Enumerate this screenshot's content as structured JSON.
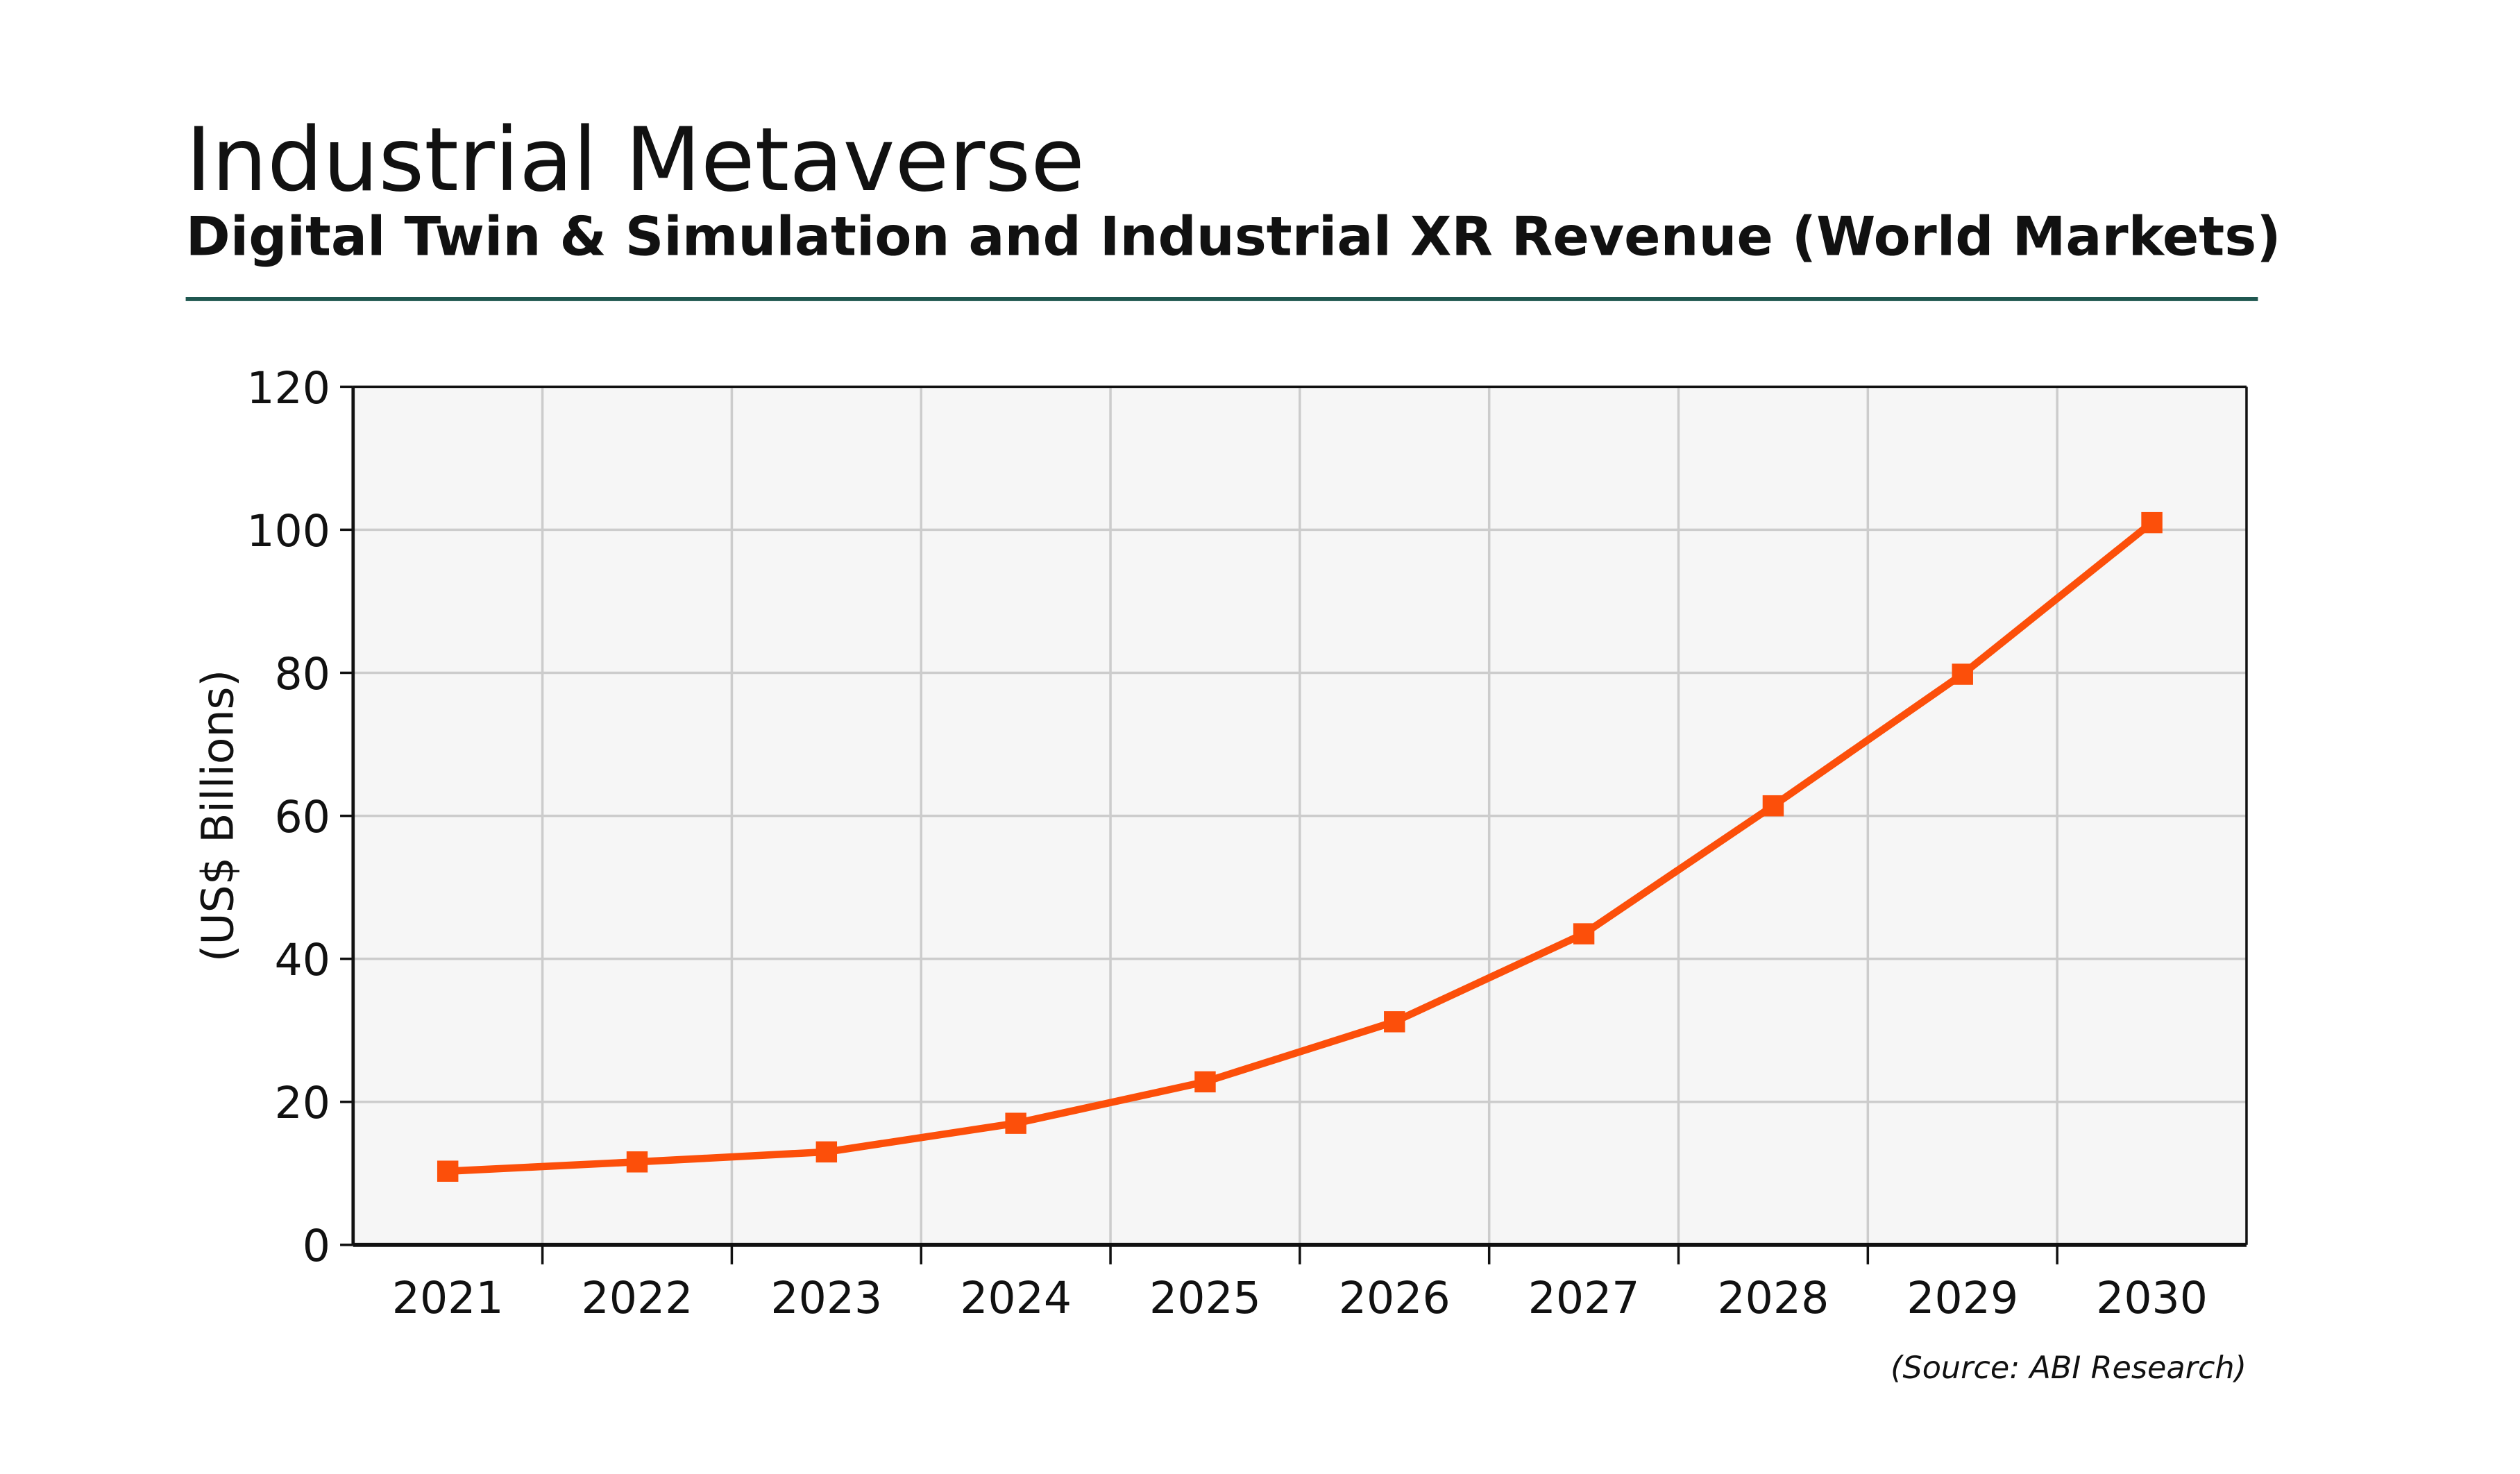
{
  "header": {
    "title": "Industrial Metaverse",
    "subtitle": "Digital Twin & Simulation and Industrial XR Revenue (World Markets)",
    "rule_color": "#1f5750"
  },
  "source": "(Source: ABI Research)",
  "chart_data": {
    "type": "line",
    "title": "Industrial Metaverse",
    "subtitle": "Digital Twin & Simulation and Industrial XR Revenue (World Markets)",
    "xlabel": "",
    "ylabel": "(US$ Billions)",
    "categories": [
      "2021",
      "2022",
      "2023",
      "2024",
      "2025",
      "2026",
      "2027",
      "2028",
      "2029",
      "2030"
    ],
    "values": [
      10.3,
      11.6,
      13.0,
      17.0,
      22.8,
      31.2,
      43.5,
      61.4,
      79.8,
      101.0
    ],
    "ylim": [
      0,
      120
    ],
    "yticks": [
      "0",
      "20",
      "40",
      "60",
      "80",
      "100",
      "120"
    ],
    "grid": true,
    "marker": "square",
    "line_color": "#fc4f0a",
    "plot_background": "#f6f6f6",
    "grid_color": "#cccccc"
  }
}
